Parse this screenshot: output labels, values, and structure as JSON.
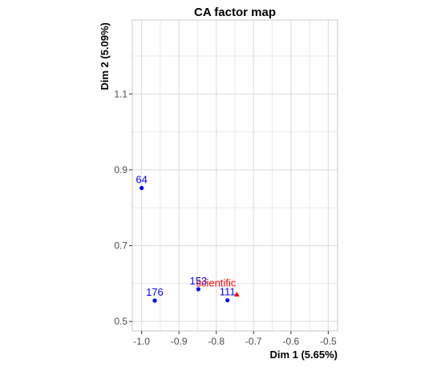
{
  "chart_data": {
    "type": "scatter",
    "title": "CA factor map",
    "xlabel": "Dim 1 (5.65%)",
    "ylabel": "Dim 2 (5.09%)",
    "xlim": [
      -1.025,
      -0.475
    ],
    "ylim": [
      0.475,
      1.295
    ],
    "x_ticks": [
      -1.0,
      -0.9,
      -0.8,
      -0.7,
      -0.6,
      -0.5
    ],
    "x_tick_labels": [
      "-1.0",
      "-0.9",
      "-0.8",
      "-0.7",
      "-0.6",
      "-0.5"
    ],
    "y_ticks": [
      0.5,
      0.7,
      0.9,
      1.1
    ],
    "y_tick_labels": [
      "0.5",
      "0.7",
      "0.9",
      "1.1"
    ],
    "grid": true,
    "colors": {
      "rows": "#0000ff",
      "columns": "#ff0000",
      "grid": "#dedede",
      "panel_border": "#c8c8c8"
    },
    "series": [
      {
        "marker": "circle",
        "color": "#0000ff",
        "points": [
          {
            "label": "64",
            "x": -1.0,
            "y": 0.852
          },
          {
            "label": "176",
            "x": -0.965,
            "y": 0.555
          },
          {
            "label": "153",
            "x": -0.848,
            "y": 0.585
          },
          {
            "label": "111",
            "x": -0.77,
            "y": 0.556
          }
        ]
      },
      {
        "marker": "triangle",
        "color": "#ff0000",
        "points": [
          {
            "label": "scientific",
            "x": -0.745,
            "y": 0.571
          }
        ]
      }
    ]
  }
}
